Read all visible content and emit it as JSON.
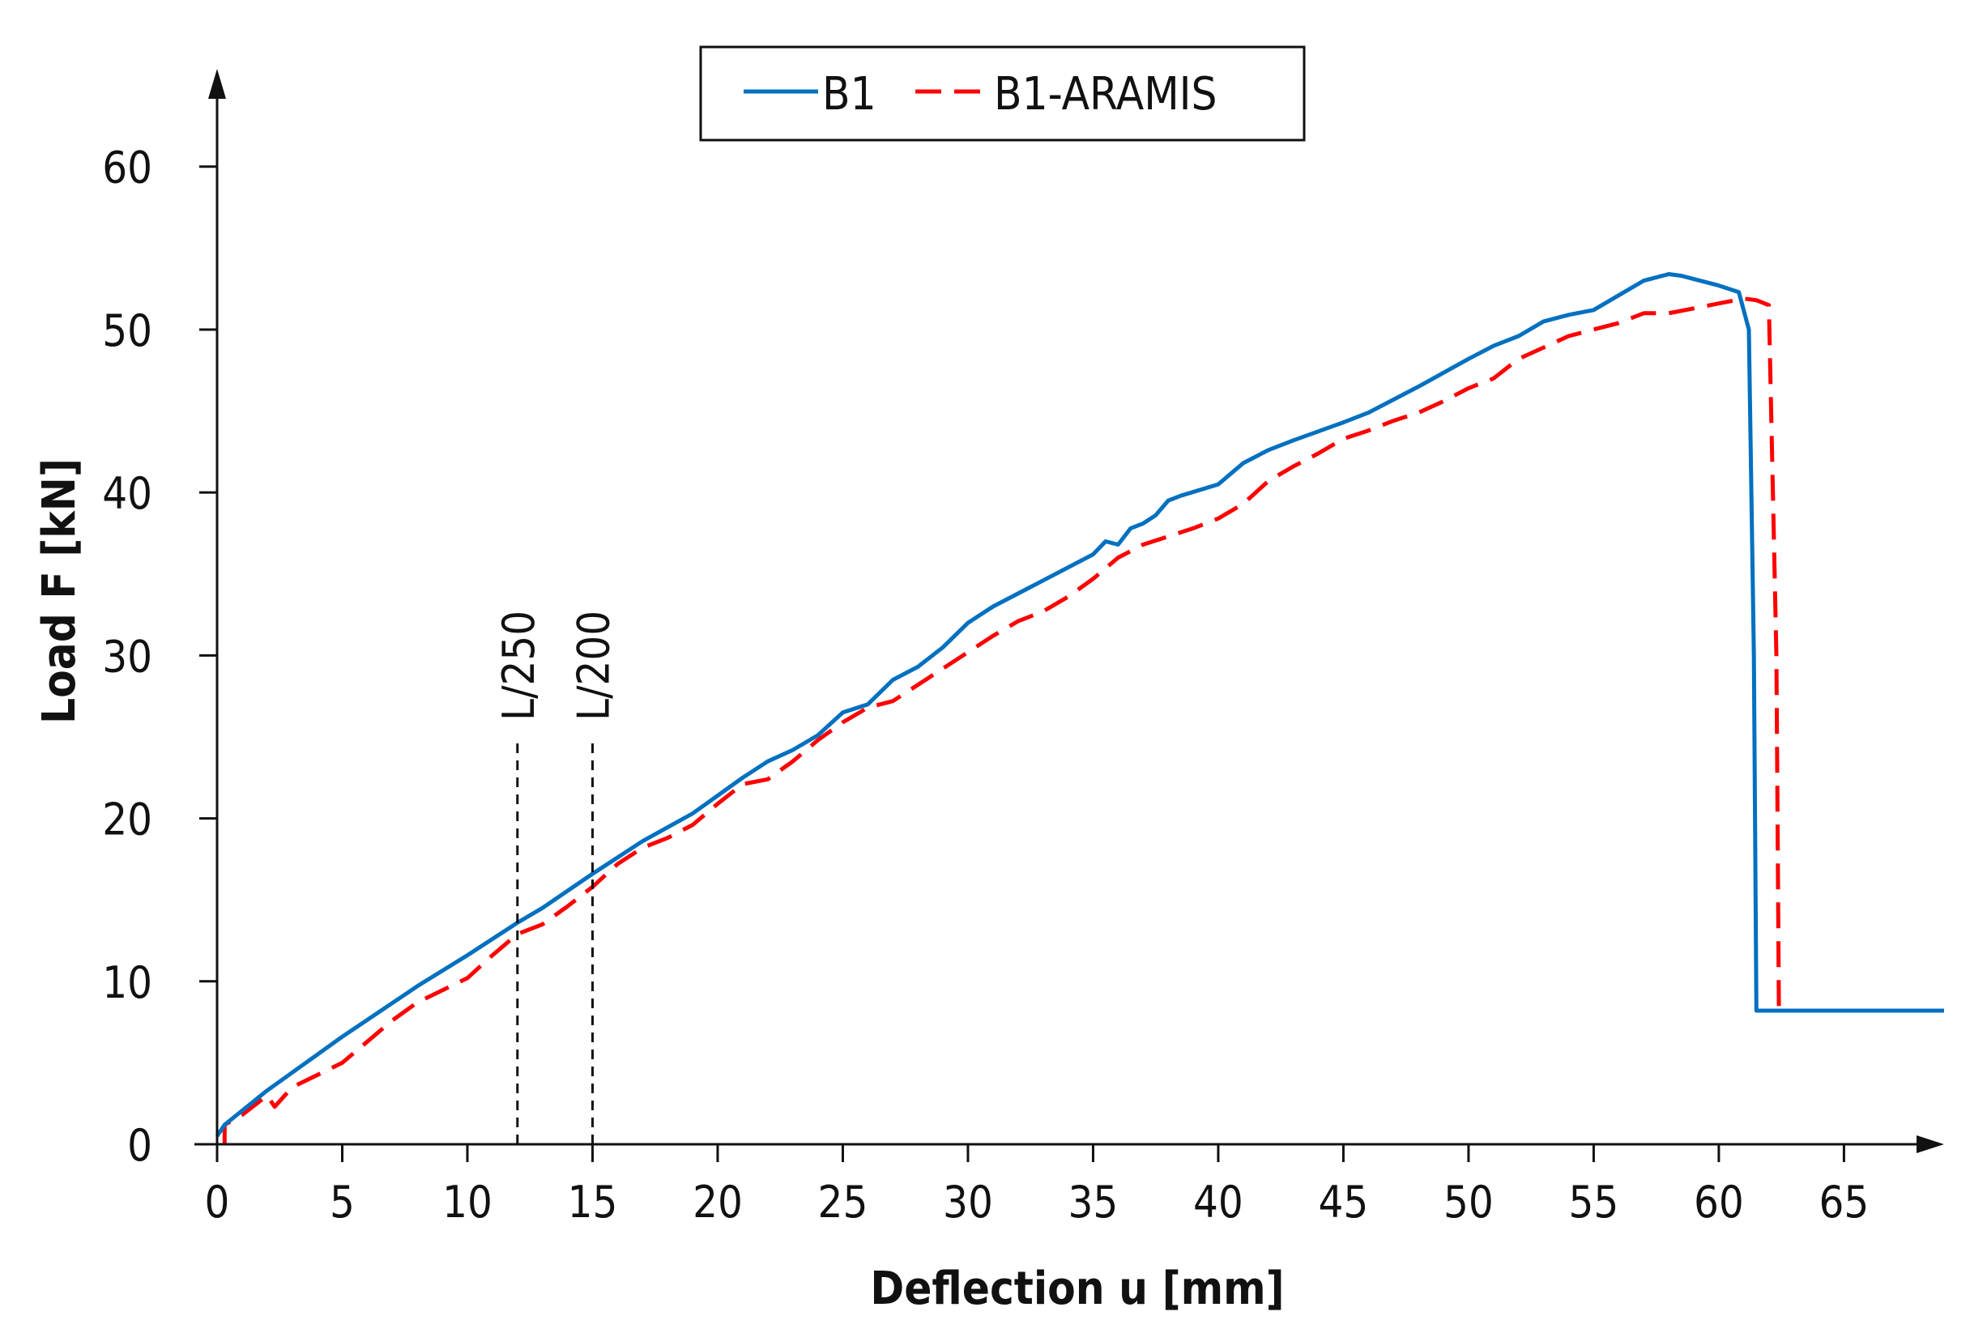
{
  "chart_data": {
    "type": "line",
    "title": "",
    "xlabel": "Deflection u [mm]",
    "ylabel": "Load F [kN]",
    "xlim": [
      0,
      69
    ],
    "ylim": [
      0,
      66
    ],
    "x_ticks": [
      0,
      5,
      10,
      15,
      20,
      25,
      30,
      35,
      40,
      45,
      50,
      55,
      60,
      65
    ],
    "y_ticks": [
      0,
      10,
      20,
      30,
      40,
      50,
      60
    ],
    "x_tick_labels": [
      "0",
      "5",
      "10",
      "15",
      "20",
      "25",
      "30",
      "35",
      "40",
      "45",
      "50",
      "55",
      "60",
      "65"
    ],
    "y_tick_labels": [
      "0",
      "10",
      "20",
      "30",
      "40",
      "50",
      "60"
    ],
    "grid": false,
    "legend_position": "top-center",
    "series": [
      {
        "name": "B1",
        "color": "#0070C0",
        "style": "solid",
        "x": [
          0,
          0.3,
          2,
          5,
          8,
          10,
          12,
          13,
          15,
          17,
          19,
          21,
          22,
          23,
          24,
          25,
          26,
          27,
          28,
          29,
          30,
          31,
          33,
          35,
          35.5,
          36,
          36.5,
          37,
          37.5,
          38,
          38.5,
          40,
          41,
          42,
          43,
          45,
          46,
          48,
          50,
          51,
          52,
          53,
          54,
          55,
          56,
          57,
          58,
          58.5,
          59,
          60,
          60.8,
          61.2,
          61.4,
          61.5,
          61.8,
          62.5,
          65,
          69
        ],
        "y": [
          0.5,
          1.2,
          3.3,
          6.6,
          9.7,
          11.6,
          13.6,
          14.5,
          16.6,
          18.6,
          20.3,
          22.5,
          23.5,
          24.2,
          25.1,
          26.5,
          27.0,
          28.5,
          29.3,
          30.5,
          32.0,
          33.0,
          34.6,
          36.2,
          37.0,
          36.8,
          37.8,
          38.1,
          38.6,
          39.5,
          39.8,
          40.5,
          41.8,
          42.6,
          43.2,
          44.3,
          44.9,
          46.5,
          48.2,
          49.0,
          49.6,
          50.5,
          50.9,
          51.2,
          52.1,
          53.0,
          53.4,
          53.3,
          53.1,
          52.7,
          52.3,
          50.0,
          30.0,
          8.2,
          8.2,
          8.2,
          8.2,
          8.2
        ]
      },
      {
        "name": "B1-ARAMIS",
        "color": "#FF0000",
        "style": "dashed",
        "x": [
          0.3,
          0.3,
          1,
          2,
          2.3,
          3,
          5,
          7,
          8,
          10,
          11,
          12,
          13,
          14,
          15,
          16,
          17,
          18,
          19,
          20,
          21,
          22,
          23,
          24,
          25,
          26,
          27,
          28,
          29,
          30,
          31,
          32,
          33,
          34,
          35,
          36,
          37,
          38,
          39,
          40,
          41,
          42,
          43,
          44,
          45,
          46,
          47,
          48,
          49,
          50,
          51,
          52,
          53,
          54,
          55,
          56,
          57,
          58,
          59,
          60,
          61,
          61.5,
          62,
          62.3,
          62.4,
          62.5,
          65,
          69
        ],
        "y": [
          0,
          1.2,
          1.8,
          3.0,
          2.3,
          3.5,
          5.0,
          7.6,
          8.7,
          10.2,
          11.6,
          12.9,
          13.5,
          14.6,
          15.8,
          17.2,
          18.2,
          18.8,
          19.6,
          20.9,
          22.1,
          22.4,
          23.5,
          24.8,
          25.9,
          26.8,
          27.2,
          28.2,
          29.2,
          30.2,
          31.2,
          32.1,
          32.7,
          33.6,
          34.7,
          36.0,
          36.8,
          37.3,
          37.8,
          38.4,
          39.3,
          40.7,
          41.6,
          42.4,
          43.3,
          43.8,
          44.4,
          44.9,
          45.6,
          46.4,
          47.0,
          48.2,
          48.9,
          49.6,
          50.0,
          50.4,
          51.0,
          51.0,
          51.3,
          51.6,
          51.9,
          51.8,
          51.5,
          30.0,
          8.2,
          8.2,
          8.2,
          8.2
        ]
      }
    ],
    "annotations": [
      {
        "label": "L/250",
        "x": 12,
        "y_top": 25
      },
      {
        "label": "L/200",
        "x": 15,
        "y_top": 25
      }
    ]
  }
}
